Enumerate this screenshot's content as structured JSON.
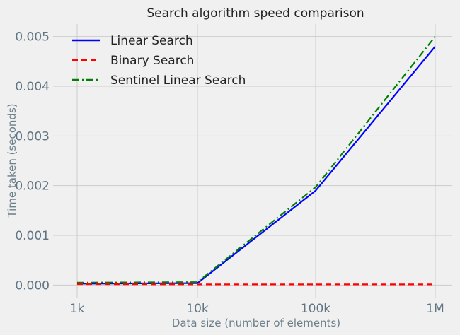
{
  "chart_data": {
    "type": "line",
    "title": "Search algorithm speed comparison",
    "xlabel": "Data size (number of elements)",
    "ylabel": "Time taken (seconds)",
    "x_tick_labels": [
      "1k",
      "10k",
      "100k",
      "1M"
    ],
    "y_tick_labels": [
      "0.000",
      "0.001",
      "0.002",
      "0.003",
      "0.004",
      "0.005"
    ],
    "y_ticks": [
      0,
      0.001,
      0.002,
      0.003,
      0.004,
      0.005
    ],
    "ylim": [
      -0.00025,
      0.00525
    ],
    "grid": true,
    "legend_position": "top-left",
    "series": [
      {
        "name": "Linear Search",
        "color": "#0000ff",
        "line_style": "solid",
        "values": [
          3e-05,
          4e-05,
          0.0019,
          0.0048
        ]
      },
      {
        "name": "Binary Search",
        "color": "#ff0000",
        "line_style": "dashed",
        "values": [
          2e-05,
          1.5e-05,
          1.5e-05,
          1.5e-05
        ]
      },
      {
        "name": "Sentinel Linear Search",
        "color": "#008000",
        "line_style": "dashdot",
        "values": [
          5e-05,
          6e-05,
          0.00197,
          0.005
        ]
      }
    ]
  }
}
